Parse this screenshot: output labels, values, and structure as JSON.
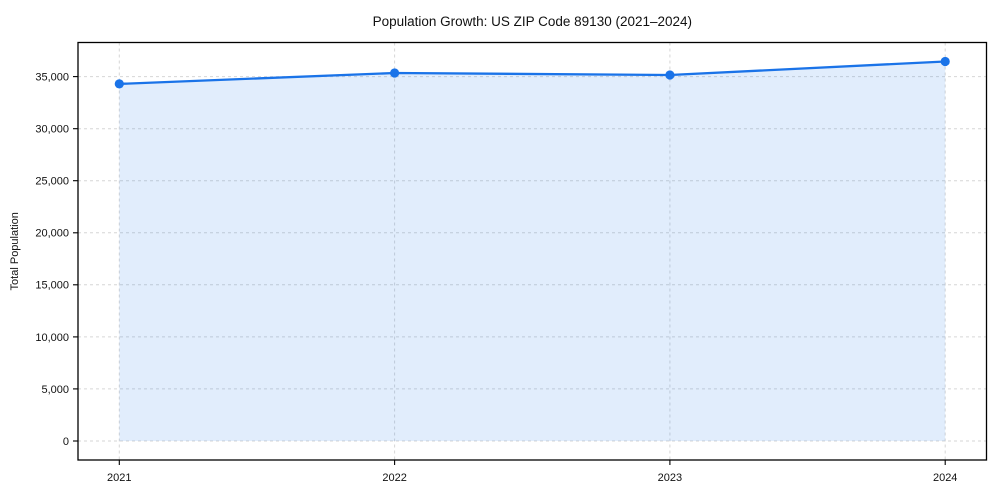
{
  "chart_data": {
    "type": "area",
    "title": "Population Growth: US ZIP Code 89130 (2021–2024)",
    "xlabel": "",
    "ylabel": "Total Population",
    "x": [
      2021,
      2022,
      2023,
      2024
    ],
    "x_tick_labels": [
      "2021",
      "2022",
      "2023",
      "2024"
    ],
    "series": [
      {
        "name": "Total Population",
        "values": [
          34300,
          35350,
          35150,
          36450
        ]
      }
    ],
    "y_ticks": [
      0,
      5000,
      10000,
      15000,
      20000,
      25000,
      30000,
      35000
    ],
    "y_tick_labels": [
      "0",
      "5,000",
      "10,000",
      "15,000",
      "20,000",
      "25,000",
      "30,000",
      "35,000"
    ],
    "xlim": [
      2020.85,
      2024.15
    ],
    "ylim": [
      -1825,
      38275
    ],
    "grid": true,
    "legend": false,
    "line_color": "#1a73e8",
    "marker_color": "#1a73e8",
    "fill_color": "rgba(26, 115, 232, 0.13)",
    "fill_to": 0
  }
}
